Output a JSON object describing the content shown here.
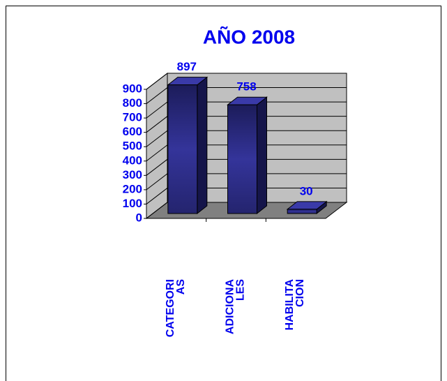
{
  "chart_data": {
    "type": "bar3d",
    "title": "AÑO 2008",
    "categories": [
      "CATEGORIAS",
      "ADICIONALES",
      "HABILITACION"
    ],
    "values": [
      897,
      758,
      30
    ],
    "color": "#2b2b7a",
    "ylim": [
      0,
      900
    ],
    "yticks": [
      0,
      100,
      200,
      300,
      400,
      500,
      600,
      700,
      800,
      900
    ],
    "grid": true
  }
}
